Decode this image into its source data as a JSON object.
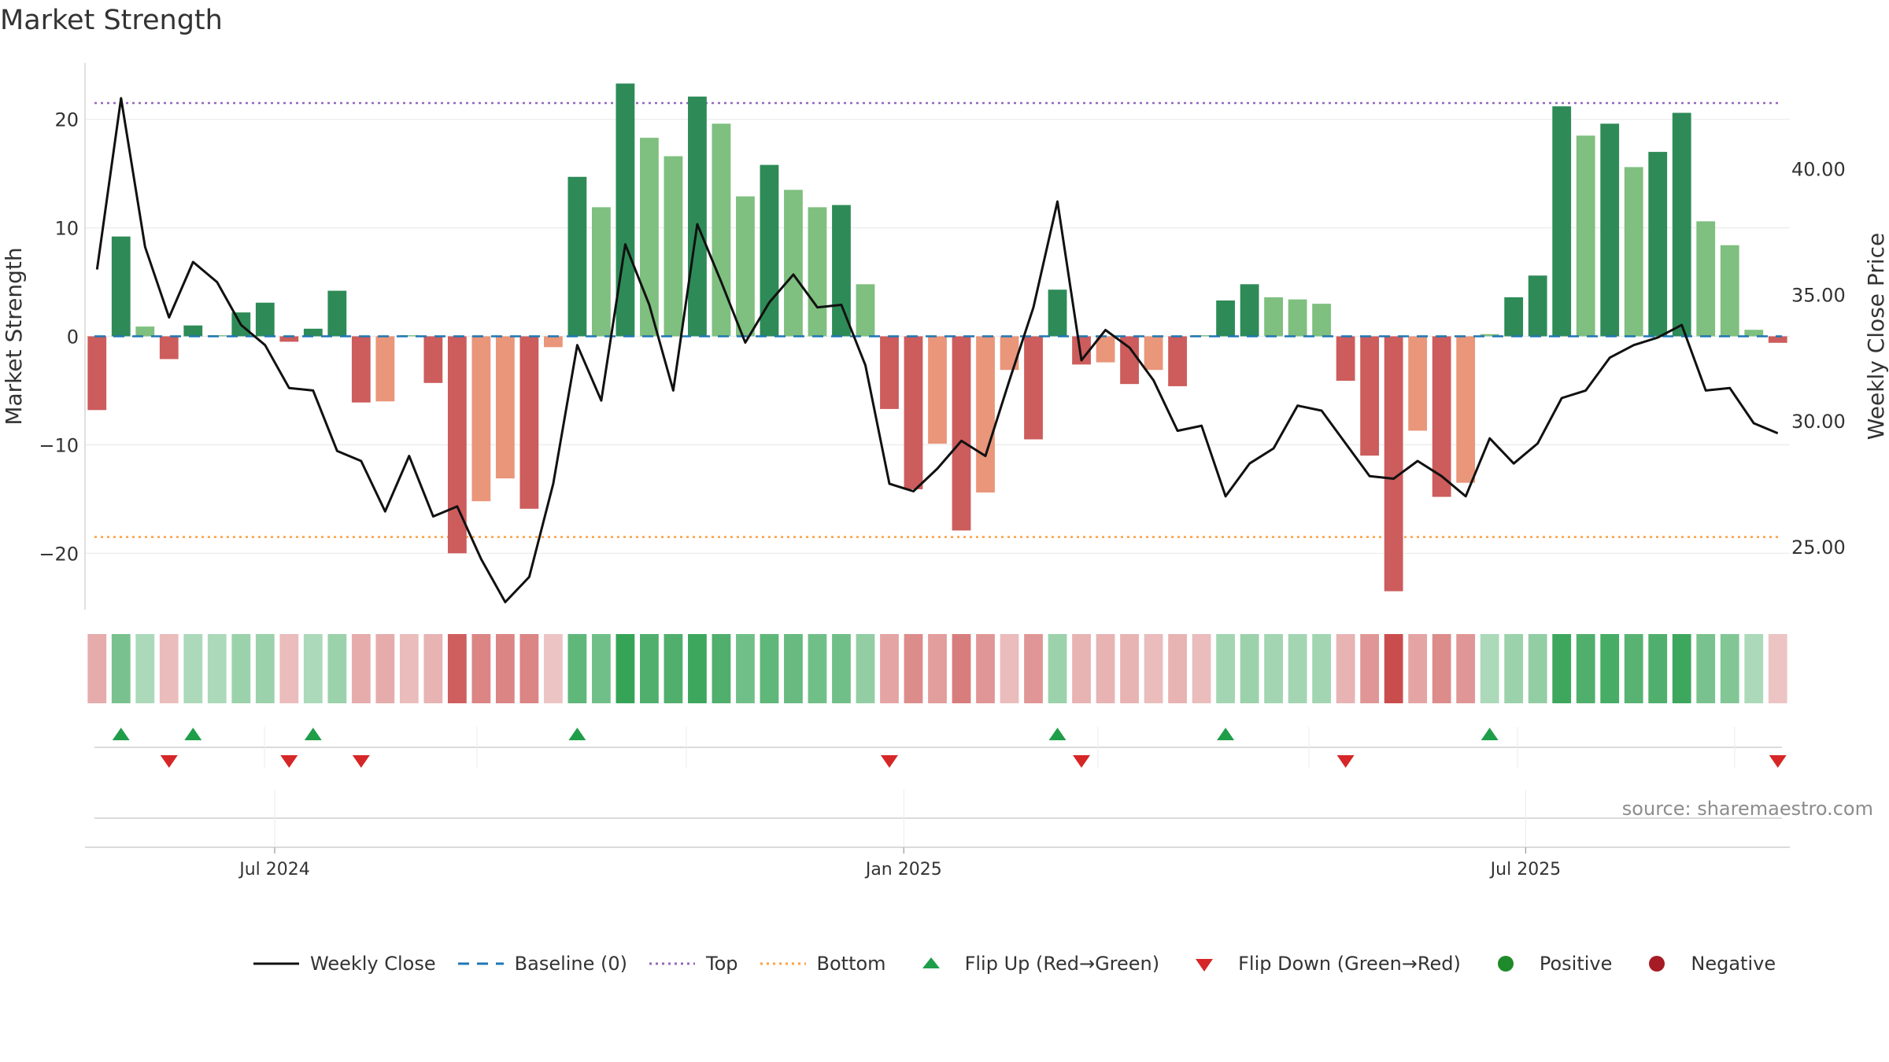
{
  "title": "Market Strength",
  "source": "source: sharemaestro.com",
  "colors": {
    "pos_strong": "#2e8b57",
    "pos_weak": "#7fbf7f",
    "neg_strong": "#cd5c5c",
    "neg_weak": "#e9967a",
    "close_line": "#111111",
    "baseline": "#1f77b4",
    "top_line": "#9467bd",
    "bottom_line": "#ff9f40",
    "flip_up": "#1f9e4a",
    "flip_down": "#d62728",
    "positive": "#1f8a2a",
    "negative": "#a51c24"
  },
  "chart_data": {
    "type": "bar",
    "title": "Market Strength",
    "ylabel_left": "Market Strength",
    "ylabel_right": "Weekly Close Price",
    "ylim_left": [
      -25.2,
      25.2
    ],
    "yticks_left": [
      {
        "v": 20,
        "label": "20"
      },
      {
        "v": 10,
        "label": "10"
      },
      {
        "v": 0,
        "label": "0"
      },
      {
        "v": -10,
        "label": "−10"
      },
      {
        "v": -20,
        "label": "−20"
      }
    ],
    "ylim_right": [
      22.5,
      44.2
    ],
    "yticks_right": [
      {
        "v": 40,
        "label": "40.00"
      },
      {
        "v": 35,
        "label": "35.00"
      },
      {
        "v": 30,
        "label": "30.00"
      },
      {
        "v": 25,
        "label": "25.00"
      }
    ],
    "xticks": [
      {
        "index": 7.4,
        "label": "Jul 2024"
      },
      {
        "index": 33.6,
        "label": "Jan 2025"
      },
      {
        "index": 59.5,
        "label": "Jul 2025"
      }
    ],
    "top_level": 21.5,
    "bottom_level": -18.5,
    "baseline_level": 0,
    "strength": [
      -6.8,
      9.2,
      0.9,
      -2.1,
      1.0,
      0.1,
      2.2,
      3.1,
      -0.5,
      0.7,
      4.2,
      -6.1,
      -6.0,
      0.1,
      -4.3,
      -20.0,
      -15.2,
      -13.1,
      -15.9,
      -1.0,
      14.7,
      11.9,
      23.3,
      18.3,
      16.6,
      22.1,
      19.6,
      12.9,
      15.8,
      13.5,
      11.9,
      12.1,
      4.8,
      -6.7,
      -14.1,
      -9.9,
      -17.9,
      -14.4,
      -3.1,
      -9.5,
      4.3,
      -2.6,
      -2.4,
      -4.4,
      -3.1,
      -4.6,
      0.1,
      3.3,
      4.8,
      3.6,
      3.4,
      3.0,
      -4.1,
      -11.0,
      -23.5,
      -8.7,
      -14.8,
      -13.5,
      0.2,
      3.6,
      5.6,
      21.2,
      18.5,
      19.6,
      15.6,
      17.0,
      20.6,
      10.6,
      8.4,
      0.6,
      -0.6
    ],
    "strength_intensity": [
      "strong",
      "strong",
      "weak",
      "strong",
      "strong",
      "weak",
      "strong",
      "strong",
      "strong",
      "strong",
      "strong",
      "strong",
      "weak",
      "weak",
      "strong",
      "strong",
      "weak",
      "weak",
      "strong",
      "weak",
      "strong",
      "weak",
      "strong",
      "weak",
      "weak",
      "strong",
      "weak",
      "weak",
      "strong",
      "weak",
      "weak",
      "strong",
      "weak",
      "strong",
      "strong",
      "weak",
      "strong",
      "weak",
      "weak",
      "strong",
      "strong",
      "strong",
      "weak",
      "strong",
      "weak",
      "strong",
      "weak",
      "strong",
      "strong",
      "weak",
      "weak",
      "weak",
      "strong",
      "strong",
      "strong",
      "weak",
      "strong",
      "weak",
      "weak",
      "strong",
      "strong",
      "strong",
      "weak",
      "strong",
      "weak",
      "strong",
      "strong",
      "weak",
      "weak",
      "weak",
      "strong"
    ],
    "close_price": [
      36.0,
      42.8,
      36.9,
      34.1,
      36.3,
      35.5,
      33.8,
      33.0,
      31.3,
      31.2,
      28.8,
      28.4,
      26.4,
      28.6,
      26.2,
      26.6,
      24.5,
      22.8,
      23.8,
      27.5,
      33.0,
      30.8,
      37.0,
      34.6,
      31.2,
      37.8,
      35.5,
      33.1,
      34.7,
      35.8,
      34.5,
      34.6,
      32.2,
      27.5,
      27.2,
      28.1,
      29.2,
      28.6,
      31.6,
      34.5,
      38.7,
      32.4,
      33.6,
      32.9,
      31.6,
      29.6,
      29.8,
      27.0,
      28.3,
      28.9,
      30.6,
      30.4,
      29.1,
      27.8,
      27.7,
      28.4,
      27.8,
      27.0,
      29.3,
      28.3,
      29.1,
      30.9,
      31.2,
      32.5,
      33.0,
      33.3,
      33.8,
      31.2,
      31.3,
      29.9,
      29.5
    ],
    "heatmap": [
      -0.35,
      0.55,
      0.25,
      -0.25,
      0.25,
      0.25,
      0.35,
      0.35,
      -0.25,
      0.25,
      0.35,
      -0.35,
      -0.35,
      -0.25,
      -0.3,
      -0.85,
      -0.6,
      -0.6,
      -0.6,
      -0.2,
      0.7,
      0.6,
      0.95,
      0.8,
      0.8,
      0.9,
      0.8,
      0.6,
      0.7,
      0.65,
      0.6,
      0.6,
      0.4,
      -0.4,
      -0.55,
      -0.45,
      -0.65,
      -0.5,
      -0.25,
      -0.5,
      0.35,
      -0.3,
      -0.3,
      -0.3,
      -0.25,
      -0.3,
      -0.25,
      0.3,
      0.35,
      0.3,
      0.3,
      0.3,
      -0.3,
      -0.5,
      -0.95,
      -0.4,
      -0.55,
      -0.5,
      0.25,
      0.35,
      0.4,
      0.9,
      0.8,
      0.85,
      0.75,
      0.8,
      0.9,
      0.55,
      0.5,
      0.25,
      -0.2
    ],
    "flip_up": [
      1,
      4,
      9,
      20,
      40,
      47,
      58
    ],
    "flip_down": [
      3,
      8,
      11,
      33,
      41,
      52,
      70
    ],
    "legend": [
      {
        "label": "Weekly Close",
        "kind": "line"
      },
      {
        "label": "Baseline (0)",
        "kind": "dash"
      },
      {
        "label": "Top",
        "kind": "dotted-top"
      },
      {
        "label": "Bottom",
        "kind": "dotted-bottom"
      },
      {
        "label": "Flip Up (Red→Green)",
        "kind": "tri-up"
      },
      {
        "label": "Flip Down (Green→Red)",
        "kind": "tri-down"
      },
      {
        "label": "Positive",
        "kind": "dot-pos"
      },
      {
        "label": "Negative",
        "kind": "dot-neg"
      }
    ]
  }
}
